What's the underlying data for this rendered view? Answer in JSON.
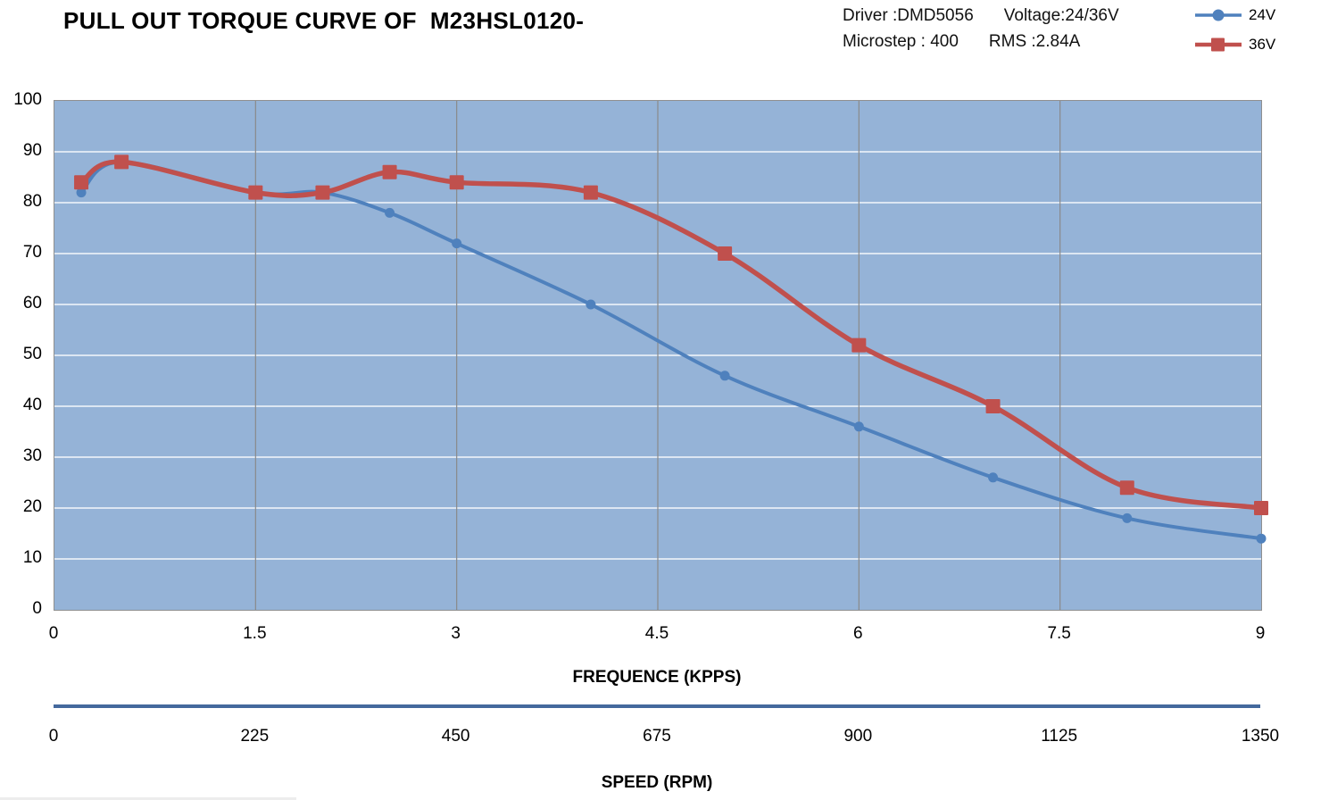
{
  "title": "PULL OUT TORQUE CURVE OF  M23HSL0120-",
  "info": {
    "driver_label": "Driver :DMD5056",
    "voltage_label": "Voltage:24/36V",
    "microstep_label": "Microstep : 400",
    "rms_label": "RMS :2.84A"
  },
  "legend": [
    {
      "label": "24V",
      "marker": "circle",
      "color": "#4F81BD"
    },
    {
      "label": "36V",
      "marker": "square",
      "color": "#C0504D"
    }
  ],
  "colors": {
    "plot_bg": "#95B3D7",
    "h_grid": "#FFFFFF",
    "v_grid": "#8A8A8A",
    "series_24v": "#4F81BD",
    "series_36v": "#C0504D",
    "speed_axis": "#44699D",
    "plot_border": "#8F8F8F"
  },
  "axes": {
    "y_tick_labels": [
      "100",
      "90",
      "80",
      "70",
      "60",
      "50",
      "40",
      "30",
      "20",
      "10",
      "0"
    ],
    "x_tick_labels": [
      "0",
      "1.5",
      "3",
      "4.5",
      "6",
      "7.5",
      "9"
    ],
    "x_title": "FREQUENCE (KPPS)",
    "speed_tick_labels": [
      "0",
      "225",
      "450",
      "675",
      "900",
      "1125",
      "1350"
    ],
    "speed_title": "SPEED (RPM)"
  },
  "chart_data": {
    "type": "line",
    "title": "PULL OUT TORQUE CURVE OF M23HSL0120-",
    "xlabel": "FREQUENCE (KPPS)",
    "ylabel": "",
    "xlim": [
      0,
      9
    ],
    "ylim": [
      0,
      100
    ],
    "x_ticks": [
      0,
      1.5,
      3,
      4.5,
      6,
      7.5,
      9
    ],
    "y_ticks": [
      0,
      10,
      20,
      30,
      40,
      50,
      60,
      70,
      80,
      90,
      100
    ],
    "grid": true,
    "smooth_lines": true,
    "legend_position": "top-right",
    "series": [
      {
        "name": "24V",
        "color": "#4F81BD",
        "marker": "circle",
        "x": [
          0.2,
          0.5,
          1.5,
          2.0,
          2.5,
          3.0,
          4.0,
          5.0,
          6.0,
          7.0,
          8.0,
          9.0
        ],
        "y": [
          82,
          88,
          82,
          82,
          78,
          72,
          60,
          46,
          36,
          26,
          18,
          14
        ]
      },
      {
        "name": "36V",
        "color": "#C0504D",
        "marker": "square",
        "x": [
          0.2,
          0.5,
          1.5,
          2.0,
          2.5,
          3.0,
          4.0,
          5.0,
          6.0,
          7.0,
          8.0,
          9.0
        ],
        "y": [
          84,
          88,
          82,
          82,
          86,
          84,
          82,
          70,
          52,
          40,
          24,
          20
        ]
      }
    ],
    "secondary_x_axis": {
      "label": "SPEED (RPM)",
      "ticks": [
        0,
        225,
        450,
        675,
        900,
        1125,
        1350
      ]
    }
  }
}
